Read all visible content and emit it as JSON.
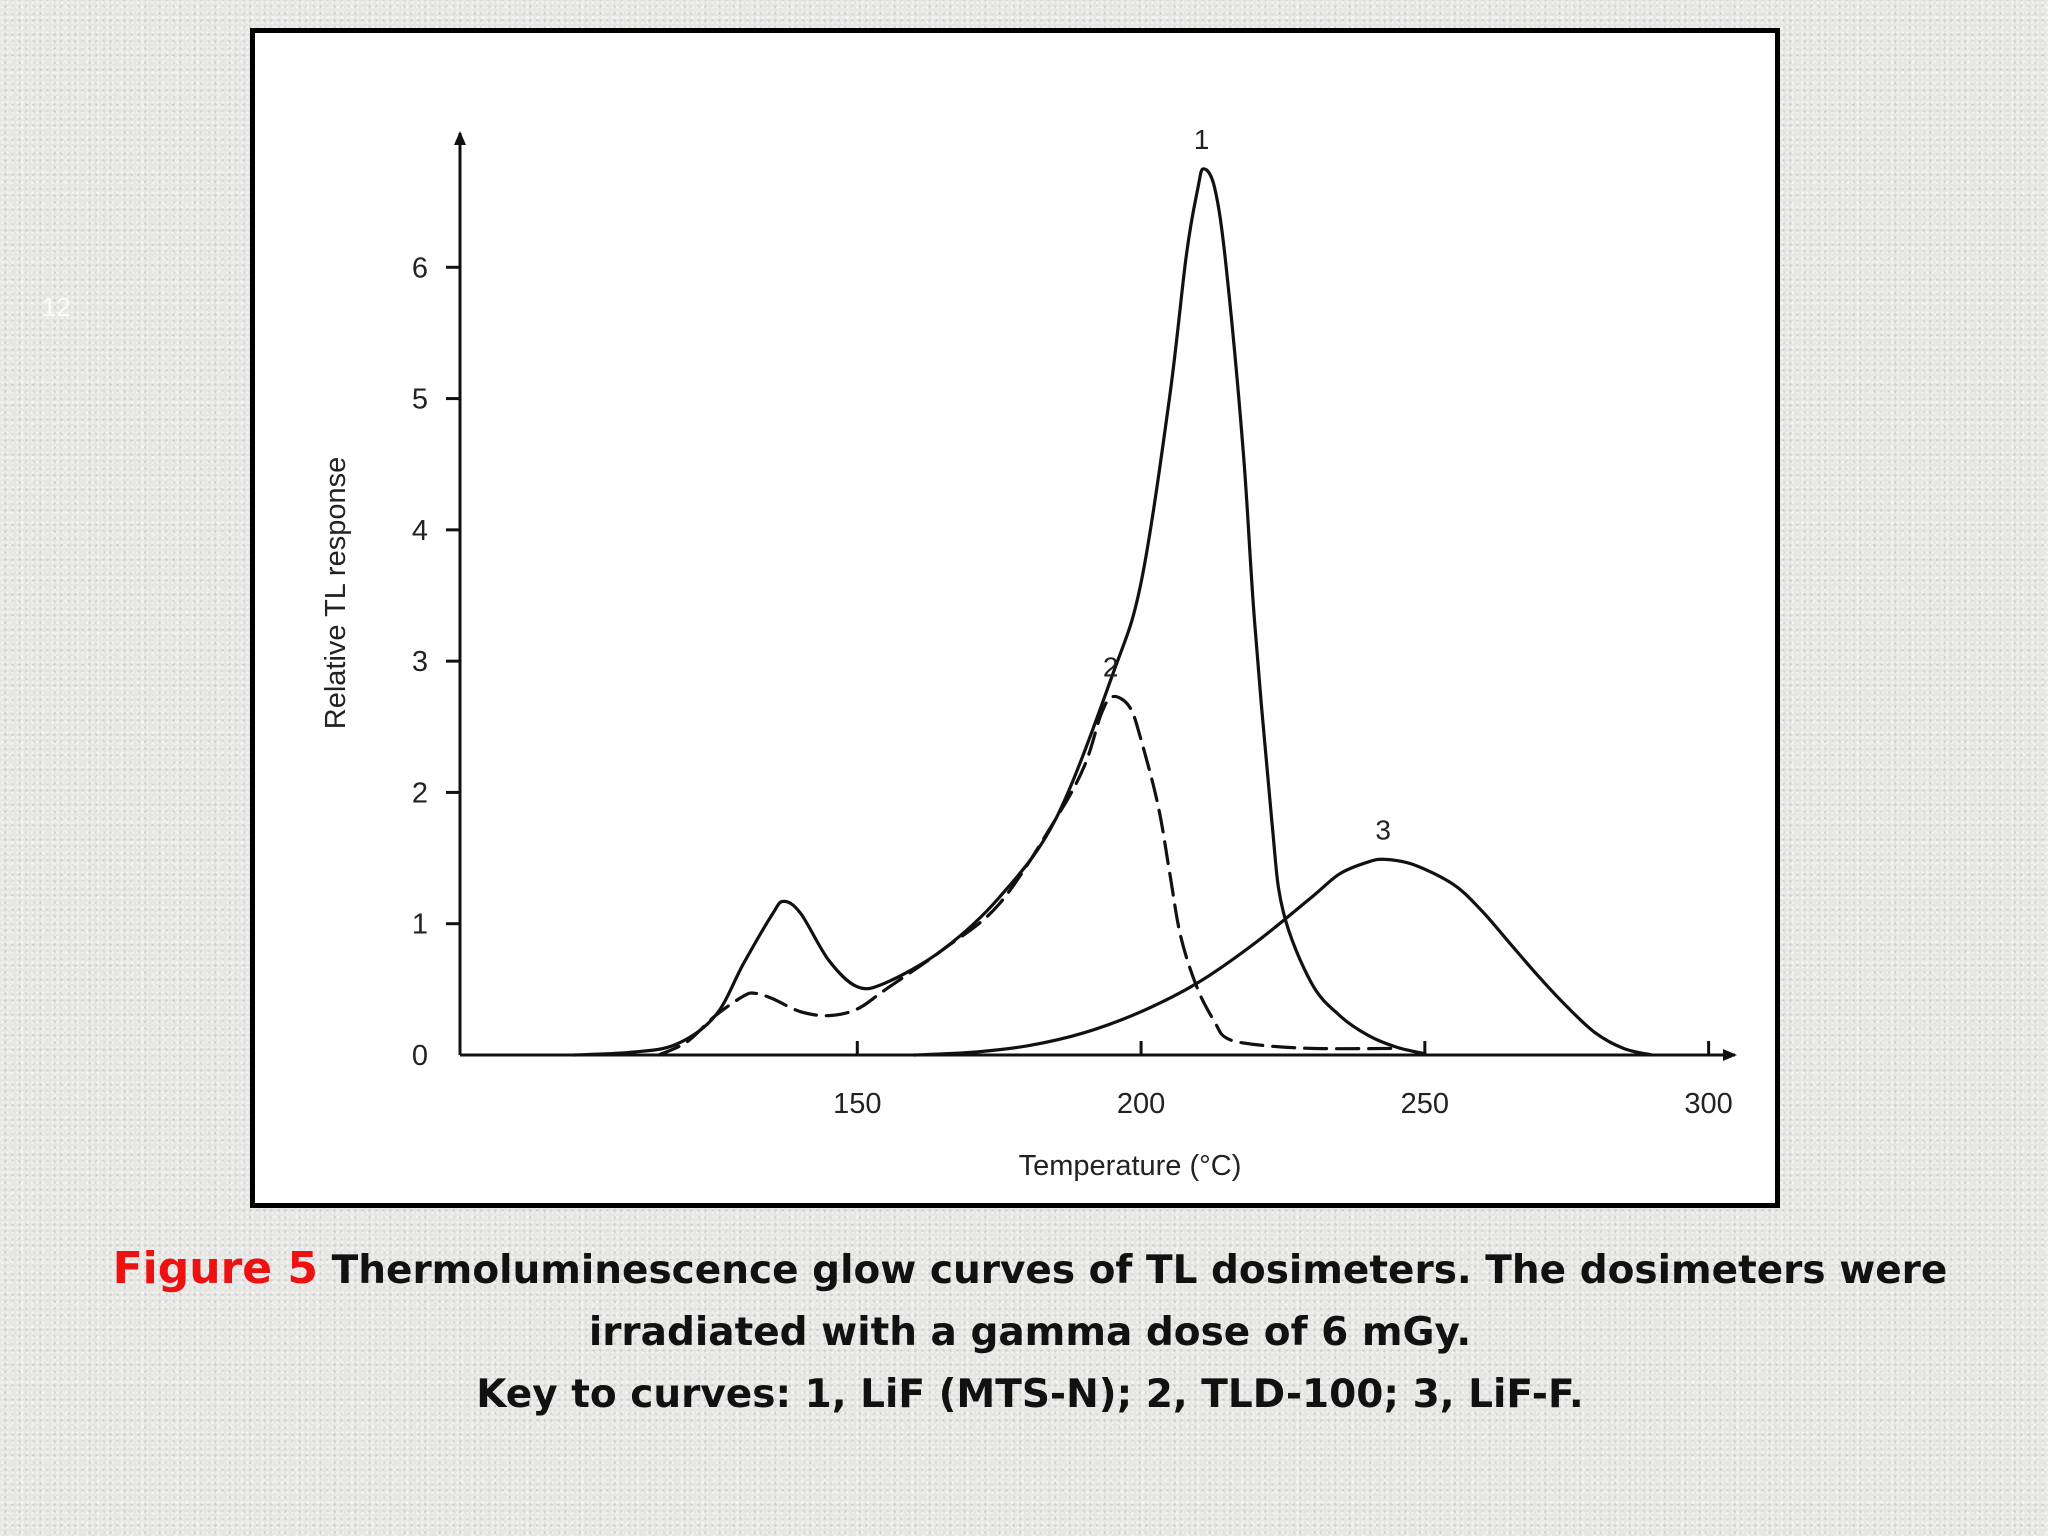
{
  "slide_number": "12",
  "caption": {
    "figure_number": "Figure 5",
    "line1": "Thermoluminescence glow curves of TL dosimeters. The dosimeters were irradiated with a gamma dose of 6 mGy.",
    "line2": "Key to curves: 1, LiF (MTS-N); 2, TLD-100; 3, LiF-F."
  },
  "colors": {
    "caption_figure_number": "#ee1111",
    "caption_text": "#111111",
    "curves": "#111111"
  },
  "chart_data": {
    "type": "line",
    "title": "",
    "xlabel": "Temperature (°C)",
    "ylabel": "Relative TL response",
    "xlim": [
      80,
      305
    ],
    "ylim": [
      0,
      7
    ],
    "x_ticks": [
      150,
      200,
      250,
      300
    ],
    "y_ticks": [
      0,
      1,
      2,
      3,
      4,
      5,
      6
    ],
    "grid": false,
    "legend": "none",
    "series": [
      {
        "label": "1",
        "line_style": "solid",
        "points": [
          [
            100,
            0
          ],
          [
            110,
            0.02
          ],
          [
            118,
            0.08
          ],
          [
            125,
            0.3
          ],
          [
            130,
            0.7
          ],
          [
            135,
            1.07
          ],
          [
            137,
            1.17
          ],
          [
            140,
            1.08
          ],
          [
            145,
            0.72
          ],
          [
            150,
            0.52
          ],
          [
            155,
            0.55
          ],
          [
            165,
            0.8
          ],
          [
            175,
            1.2
          ],
          [
            185,
            1.8
          ],
          [
            195,
            2.9
          ],
          [
            200,
            3.6
          ],
          [
            205,
            5.0
          ],
          [
            208,
            6.1
          ],
          [
            210,
            6.6
          ],
          [
            211,
            6.75
          ],
          [
            213,
            6.6
          ],
          [
            215,
            6.0
          ],
          [
            218,
            4.6
          ],
          [
            220,
            3.3
          ],
          [
            223,
            1.8
          ],
          [
            225,
            1.1
          ],
          [
            230,
            0.55
          ],
          [
            235,
            0.3
          ],
          [
            240,
            0.15
          ],
          [
            245,
            0.06
          ],
          [
            250,
            0.01
          ]
        ]
      },
      {
        "label": "2",
        "line_style": "dashed",
        "points": [
          [
            115,
            0
          ],
          [
            120,
            0.1
          ],
          [
            125,
            0.3
          ],
          [
            130,
            0.45
          ],
          [
            132,
            0.47
          ],
          [
            135,
            0.43
          ],
          [
            140,
            0.33
          ],
          [
            145,
            0.3
          ],
          [
            150,
            0.35
          ],
          [
            155,
            0.5
          ],
          [
            165,
            0.8
          ],
          [
            175,
            1.15
          ],
          [
            185,
            1.8
          ],
          [
            190,
            2.2
          ],
          [
            193,
            2.6
          ],
          [
            195,
            2.73
          ],
          [
            198,
            2.65
          ],
          [
            200,
            2.4
          ],
          [
            203,
            1.9
          ],
          [
            205,
            1.4
          ],
          [
            207,
            0.9
          ],
          [
            210,
            0.5
          ],
          [
            213,
            0.25
          ],
          [
            215,
            0.13
          ],
          [
            220,
            0.08
          ],
          [
            230,
            0.05
          ],
          [
            245,
            0.05
          ]
        ]
      },
      {
        "label": "3",
        "line_style": "solid",
        "points": [
          [
            160,
            0
          ],
          [
            170,
            0.02
          ],
          [
            180,
            0.07
          ],
          [
            190,
            0.17
          ],
          [
            200,
            0.33
          ],
          [
            210,
            0.55
          ],
          [
            220,
            0.85
          ],
          [
            230,
            1.2
          ],
          [
            235,
            1.38
          ],
          [
            240,
            1.47
          ],
          [
            243,
            1.49
          ],
          [
            248,
            1.45
          ],
          [
            255,
            1.3
          ],
          [
            260,
            1.1
          ],
          [
            265,
            0.85
          ],
          [
            270,
            0.6
          ],
          [
            275,
            0.37
          ],
          [
            280,
            0.17
          ],
          [
            285,
            0.05
          ],
          [
            290,
            0
          ]
        ]
      }
    ],
    "annotations": [
      {
        "text": "1",
        "x": 211,
        "y": 6.75
      },
      {
        "text": "2",
        "x": 195,
        "y": 2.73
      },
      {
        "text": "3",
        "x": 243,
        "y": 1.49
      }
    ]
  }
}
